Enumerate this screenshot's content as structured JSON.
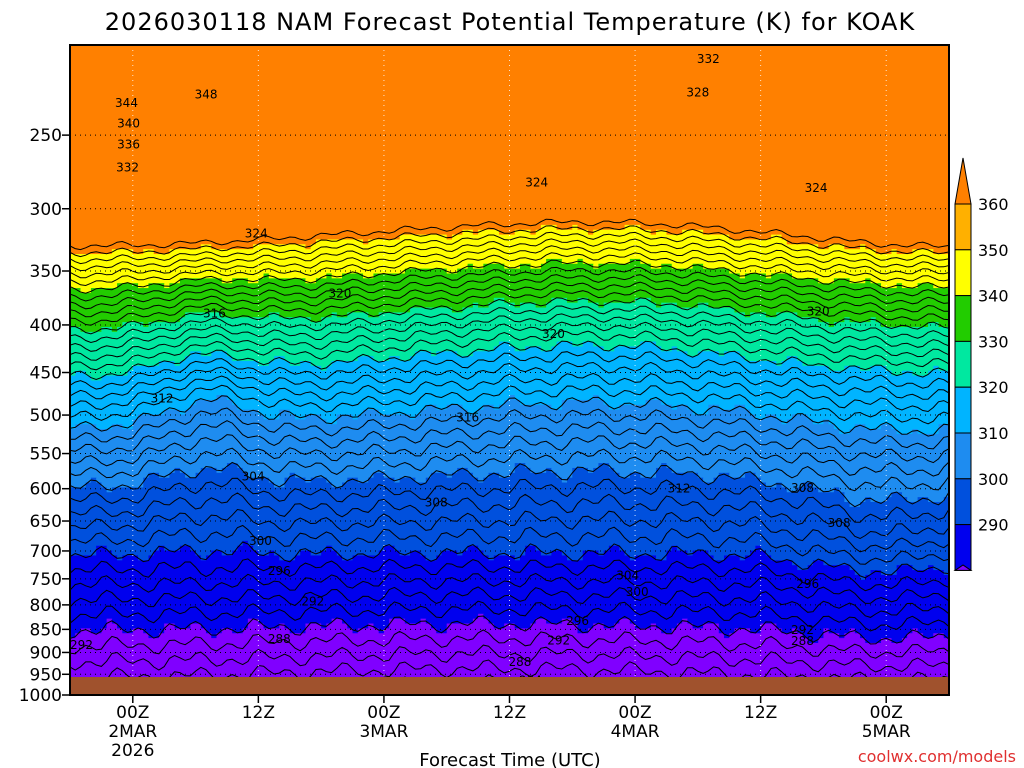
{
  "chart_data": {
    "type": "contour",
    "title": "2026030118 NAM Forecast Potential Temperature (K) for KOAK",
    "xlabel": "Forecast Time (UTC)",
    "ylabel": "",
    "x_range_hours": [
      0,
      84
    ],
    "y_range_hpa": [
      200,
      1000
    ],
    "y_scale": "log-pressure (inverted)",
    "x_ticks": [
      {
        "hour": 6,
        "label": "00Z",
        "sub1": "2MAR",
        "sub2": "2026"
      },
      {
        "hour": 18,
        "label": "12Z",
        "sub1": "",
        "sub2": ""
      },
      {
        "hour": 30,
        "label": "00Z",
        "sub1": "3MAR",
        "sub2": ""
      },
      {
        "hour": 42,
        "label": "12Z",
        "sub1": "",
        "sub2": ""
      },
      {
        "hour": 54,
        "label": "00Z",
        "sub1": "4MAR",
        "sub2": ""
      },
      {
        "hour": 66,
        "label": "12Z",
        "sub1": "",
        "sub2": ""
      },
      {
        "hour": 78,
        "label": "00Z",
        "sub1": "5MAR",
        "sub2": ""
      }
    ],
    "y_ticks": [
      250,
      300,
      350,
      400,
      450,
      500,
      550,
      600,
      650,
      700,
      750,
      800,
      850,
      900,
      950,
      1000
    ],
    "grid": true,
    "contour_interval_K": 2,
    "contour_labels": [
      {
        "hour": 5.4,
        "p": 231,
        "value": "344"
      },
      {
        "hour": 13.0,
        "p": 226,
        "value": "348"
      },
      {
        "hour": 5.6,
        "p": 243,
        "value": "340"
      },
      {
        "hour": 5.6,
        "p": 256,
        "value": "336"
      },
      {
        "hour": 5.5,
        "p": 271,
        "value": "332"
      },
      {
        "hour": 61.0,
        "p": 207,
        "value": "332"
      },
      {
        "hour": 60.0,
        "p": 225,
        "value": "328"
      },
      {
        "hour": 44.6,
        "p": 281,
        "value": "324"
      },
      {
        "hour": 17.8,
        "p": 319,
        "value": "324"
      },
      {
        "hour": 71.3,
        "p": 285,
        "value": "324"
      },
      {
        "hour": 25.8,
        "p": 370,
        "value": "320"
      },
      {
        "hour": 46.2,
        "p": 409,
        "value": "320"
      },
      {
        "hour": 71.5,
        "p": 387,
        "value": "320"
      },
      {
        "hour": 13.8,
        "p": 389,
        "value": "316"
      },
      {
        "hour": 38.0,
        "p": 503,
        "value": "316"
      },
      {
        "hour": 8.8,
        "p": 480,
        "value": "312"
      },
      {
        "hour": 58.2,
        "p": 600,
        "value": "312"
      },
      {
        "hour": 17.5,
        "p": 582,
        "value": "304"
      },
      {
        "hour": 35.0,
        "p": 621,
        "value": "308"
      },
      {
        "hour": 70.0,
        "p": 599,
        "value": "308"
      },
      {
        "hour": 73.5,
        "p": 653,
        "value": "308"
      },
      {
        "hour": 18.2,
        "p": 683,
        "value": "300"
      },
      {
        "hour": 20.0,
        "p": 736,
        "value": "296"
      },
      {
        "hour": 23.2,
        "p": 793,
        "value": "292"
      },
      {
        "hour": 53.3,
        "p": 744,
        "value": "304"
      },
      {
        "hour": 54.2,
        "p": 775,
        "value": "300"
      },
      {
        "hour": 48.5,
        "p": 833,
        "value": "296"
      },
      {
        "hour": 46.7,
        "p": 874,
        "value": "292"
      },
      {
        "hour": 1.1,
        "p": 884,
        "value": "292"
      },
      {
        "hour": 20.0,
        "p": 871,
        "value": "288"
      },
      {
        "hour": 70.5,
        "p": 760,
        "value": "296"
      },
      {
        "hour": 70.0,
        "p": 851,
        "value": "292"
      },
      {
        "hour": 70.0,
        "p": 875,
        "value": "288"
      },
      {
        "hour": 43.0,
        "p": 921,
        "value": "288"
      },
      {
        "hour": 44.0,
        "p": 965,
        "value": "284"
      }
    ],
    "colorbar": {
      "levels": [
        290,
        300,
        310,
        320,
        330,
        340,
        350,
        360
      ],
      "colors": [
        "#8000ff",
        "#0000ee",
        "#0050dd",
        "#1e8cf0",
        "#00b4ff",
        "#00e8a0",
        "#22cc00",
        "#ffff00",
        "#ffb000",
        "#ff8000"
      ]
    },
    "ground_color": "#a0522d",
    "credit": "coolwx.com/models",
    "credit_color": "#e03030"
  }
}
